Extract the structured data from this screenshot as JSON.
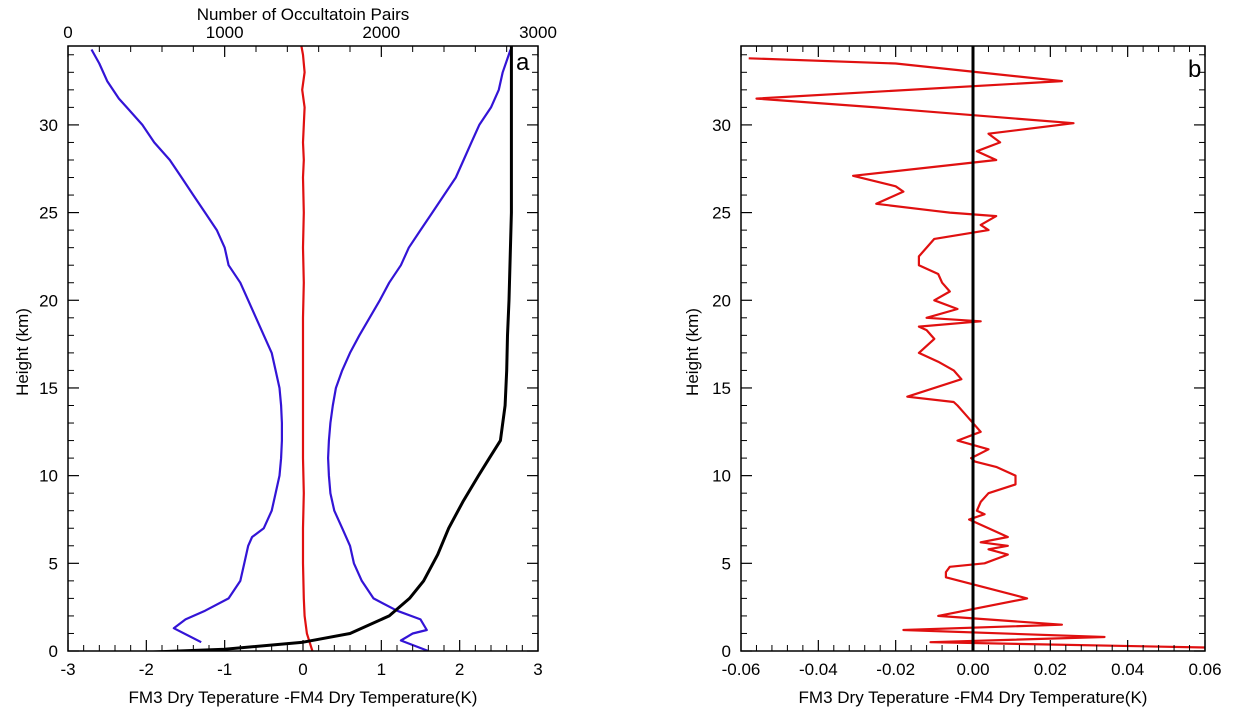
{
  "chart_data": [
    {
      "type": "line",
      "panel_label": "a",
      "xlabel": "FM3 Dry Teperature -FM4 Dry Temperature(K)",
      "ylabel": "Height (km)",
      "top_xlabel": "Number of Occultatoin Pairs",
      "xlim": [
        -3,
        3
      ],
      "ylim": [
        0,
        34.5
      ],
      "top_xlim": [
        0,
        3000
      ],
      "x_ticks": [
        "-3",
        "-2",
        "-1",
        "0",
        "1",
        "2",
        "3"
      ],
      "y_ticks": [
        "0",
        "5",
        "10",
        "15",
        "20",
        "25",
        "30"
      ],
      "top_x_ticks": [
        "0",
        "1000",
        "2000",
        "3000"
      ],
      "series": [
        {
          "color": "#e01010",
          "axis": "bottom",
          "x": [
            0.12,
            0.05,
            0.02,
            0.01,
            0.0,
            0.0,
            0.01,
            0.0,
            0.0,
            0.0,
            0.0,
            0.0,
            0.01,
            0.0,
            0.01,
            0.0,
            0.01,
            0.0,
            0.01,
            0.02,
            -0.01,
            0.02,
            0.0,
            -0.02
          ],
          "y": [
            0,
            1,
            2,
            3,
            5,
            7,
            9,
            11,
            13,
            15,
            17,
            19,
            21,
            23,
            25,
            27,
            28,
            29,
            30,
            31,
            32,
            33,
            34,
            34.5
          ]
        },
        {
          "color": "#3314d6",
          "axis": "bottom",
          "x": [
            -1.3,
            -1.65,
            -1.5,
            -1.25,
            -0.95,
            -0.8,
            -0.75,
            -0.7,
            -0.65,
            -0.5,
            -0.4,
            -0.35,
            -0.3,
            -0.28,
            -0.27,
            -0.27,
            -0.28,
            -0.3,
            -0.35,
            -0.4,
            -0.5,
            -0.6,
            -0.7,
            -0.8,
            -0.95,
            -1.0,
            -1.1,
            -1.25,
            -1.4,
            -1.55,
            -1.7,
            -1.9,
            -2.05,
            -2.25,
            -2.35,
            -2.5,
            -2.6,
            -2.7
          ],
          "y": [
            0.5,
            1.3,
            1.8,
            2.3,
            3.0,
            4.0,
            5.0,
            6.0,
            6.5,
            7.0,
            8.0,
            9.0,
            10.0,
            11.0,
            12.0,
            13.0,
            14.0,
            15.0,
            16.0,
            17.0,
            18.0,
            19.0,
            20.0,
            21.0,
            22.0,
            23.0,
            24.0,
            25.0,
            26.0,
            27.0,
            28.0,
            29.0,
            30.0,
            31.0,
            31.5,
            32.5,
            33.5,
            34.3
          ]
        },
        {
          "color": "#3314d6",
          "axis": "bottom",
          "x": [
            1.6,
            1.25,
            1.4,
            1.58,
            1.5,
            1.2,
            0.9,
            0.75,
            0.65,
            0.6,
            0.5,
            0.4,
            0.35,
            0.33,
            0.32,
            0.33,
            0.35,
            0.38,
            0.42,
            0.5,
            0.6,
            0.72,
            0.85,
            0.98,
            1.1,
            1.25,
            1.35,
            1.5,
            1.65,
            1.8,
            1.95,
            2.05,
            2.15,
            2.25,
            2.4,
            2.5,
            2.55,
            2.65
          ],
          "y": [
            0.0,
            0.6,
            1.0,
            1.2,
            1.8,
            2.3,
            3.0,
            4.0,
            5.0,
            6.0,
            7.0,
            8.0,
            9.0,
            10.0,
            11.0,
            12.0,
            13.0,
            14.0,
            15.0,
            16.0,
            17.0,
            18.0,
            19.0,
            20.0,
            21.0,
            22.0,
            23.0,
            24.0,
            25.0,
            26.0,
            27.0,
            28.0,
            29.0,
            30.0,
            31.0,
            32.0,
            33.0,
            34.3
          ]
        },
        {
          "color": "#000000",
          "axis": "top",
          "x": [
            130,
            1000,
            1500,
            1800,
            2050,
            2180,
            2270,
            2360,
            2430,
            2520,
            2620,
            2690,
            2760,
            2790,
            2800,
            2805,
            2815,
            2830,
            2830
          ],
          "y": [
            -0.2,
            0.1,
            0.5,
            1.0,
            2.0,
            3.0,
            4.0,
            5.5,
            7.0,
            8.5,
            10.0,
            11.0,
            12.0,
            14.0,
            16.0,
            18.0,
            20.0,
            25.0,
            34.5
          ]
        }
      ]
    },
    {
      "type": "line",
      "panel_label": "b",
      "xlabel": "FM3 Dry Teperature -FM4 Dry Temperature(K)",
      "ylabel": "Height (km)",
      "xlim": [
        -0.06,
        0.06
      ],
      "ylim": [
        0,
        34.5
      ],
      "x_ticks": [
        "-0.06",
        "-0.04",
        "-0.02",
        "0.00",
        "0.02",
        "0.04",
        "0.06"
      ],
      "y_ticks": [
        "0",
        "5",
        "10",
        "15",
        "20",
        "25",
        "30"
      ],
      "series": [
        {
          "color": "#e01010",
          "x": [
            -0.058,
            -0.02,
            0.023,
            -0.056,
            -0.025,
            0.026,
            0.004,
            0.007,
            0.001,
            0.006,
            -0.031,
            -0.02,
            -0.018,
            -0.025,
            -0.01,
            -0.006,
            0.006,
            0.002,
            0.004,
            -0.01,
            -0.014,
            -0.014,
            -0.009,
            -0.008,
            -0.006,
            -0.01,
            -0.004,
            -0.012,
            0.002,
            -0.014,
            -0.012,
            -0.01,
            -0.014,
            -0.009,
            -0.005,
            -0.003,
            -0.017,
            -0.005,
            -0.004,
            -0.002,
            0.002,
            -0.004,
            0.004,
            -0.0005,
            0.0005,
            0.006,
            0.011,
            0.011,
            0.004,
            0.002,
            0.001,
            0.003,
            -0.001,
            0.004,
            0.009,
            0.002,
            0.009,
            0.004,
            0.009,
            0.003,
            -0.006,
            -0.007,
            -0.007,
            0.014,
            -0.009,
            0.023,
            -0.018,
            0.034,
            -0.011,
            0.06
          ],
          "y": [
            33.8,
            33.5,
            32.5,
            31.5,
            31.0,
            30.1,
            29.5,
            29.0,
            28.5,
            28.0,
            27.1,
            26.5,
            26.2,
            25.5,
            25.1,
            25.0,
            24.8,
            24.3,
            24.0,
            23.5,
            22.5,
            22.0,
            21.5,
            21.0,
            20.5,
            20.0,
            19.5,
            19.0,
            18.8,
            18.5,
            18.3,
            17.8,
            17.0,
            16.5,
            16.0,
            15.5,
            14.5,
            14.2,
            14.0,
            13.5,
            12.5,
            12.0,
            11.5,
            11.0,
            10.8,
            10.5,
            10.0,
            9.5,
            9.0,
            8.5,
            8.0,
            7.8,
            7.5,
            7.0,
            6.5,
            6.2,
            6.0,
            5.8,
            5.5,
            5.0,
            4.8,
            4.5,
            4.2,
            3.0,
            2.0,
            1.5,
            1.2,
            0.8,
            0.5,
            0.2
          ]
        },
        {
          "color": "#000000",
          "x": [
            0.0,
            0.0
          ],
          "y": [
            0,
            34.5
          ]
        }
      ]
    }
  ]
}
